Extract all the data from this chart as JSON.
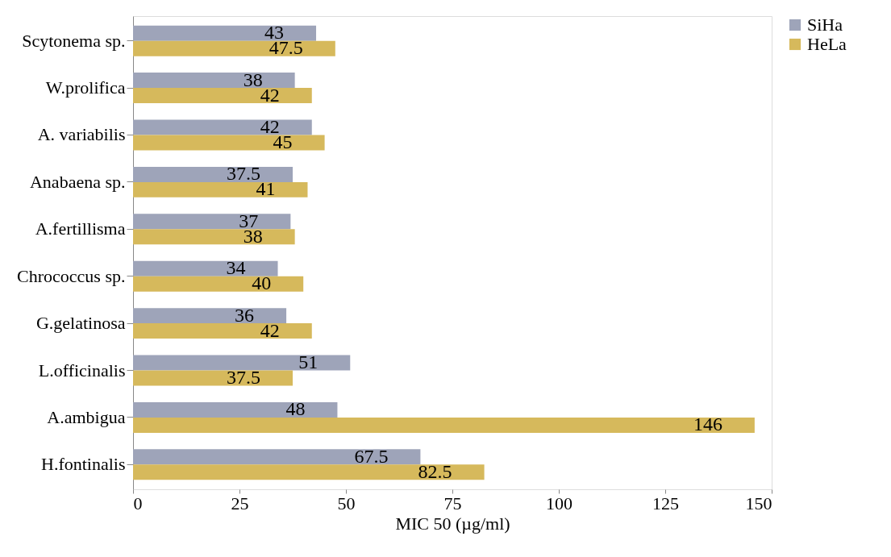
{
  "chart_data": {
    "type": "bar",
    "orientation": "horizontal",
    "xlabel": "MIC 50 (µg/ml)",
    "categories": [
      "Scytonema sp.",
      "W.prolifica",
      "A. variabilis",
      "Anabaena sp.",
      "A.fertillisma",
      "Chrococcus sp.",
      "G.gelatinosa",
      "L.officinalis",
      "A.ambigua",
      "H.fontinalis"
    ],
    "series": [
      {
        "name": "SiHa",
        "color": "#9ea4b9",
        "values": [
          43,
          38,
          42,
          37.5,
          37,
          34,
          36,
          51,
          48,
          67.5
        ]
      },
      {
        "name": "HeLa",
        "color": "#d6b95c",
        "values": [
          47.5,
          42,
          45,
          41,
          38,
          40,
          42,
          37.5,
          146,
          82.5
        ]
      }
    ],
    "xlim": [
      0,
      150
    ],
    "xticks": [
      0,
      25,
      50,
      75,
      100,
      125,
      150
    ],
    "grid": false,
    "legend": "right",
    "data_labels": true
  }
}
